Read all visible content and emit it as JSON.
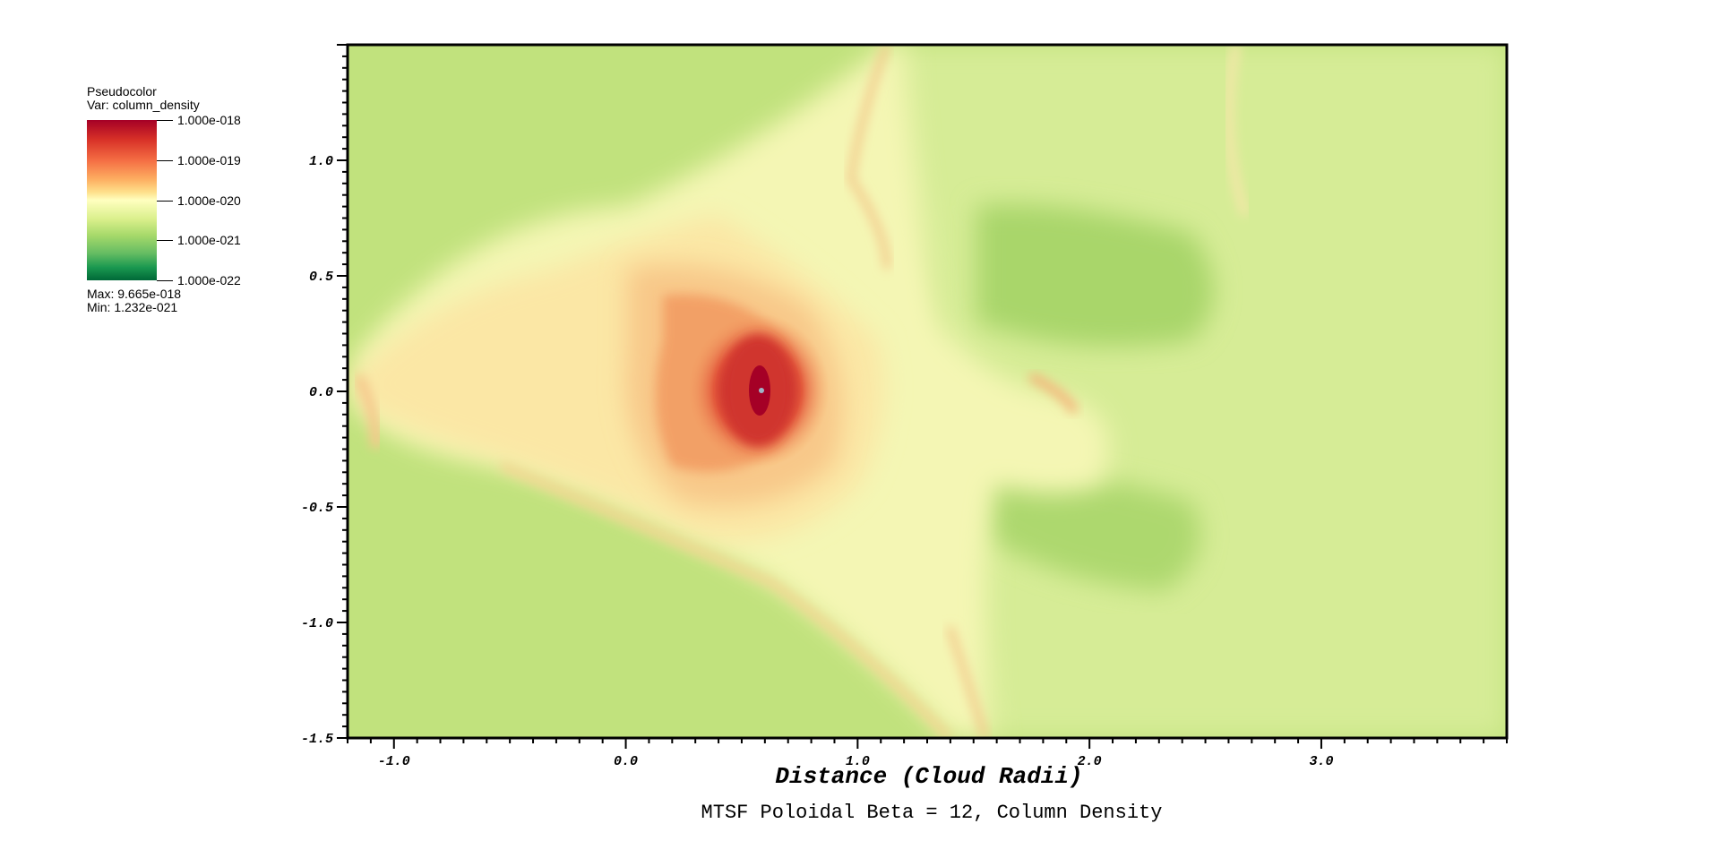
{
  "chart_data": {
    "type": "heatmap",
    "title": "MTSF Poloidal Beta = 12, Column Density",
    "xlabel": "Distance (Cloud Radii)",
    "ylabel": "",
    "xlim": [
      -1.2,
      3.8
    ],
    "ylim": [
      -1.5,
      1.5
    ],
    "x_ticks": [
      "-1.0",
      "0.0",
      "1.0",
      "2.0",
      "3.0"
    ],
    "x_tick_values": [
      -1.0,
      0.0,
      1.0,
      2.0,
      3.0
    ],
    "y_ticks": [
      "1.0",
      "0.5",
      "0.0",
      "-0.5",
      "-1.0",
      "-1.5"
    ],
    "y_tick_values": [
      1.0,
      0.5,
      0.0,
      -0.5,
      -1.0,
      -1.5
    ],
    "legend": {
      "plot_type": "Pseudocolor",
      "variable": "Var: column_density",
      "colorbar_labels": [
        "1.000e-018",
        "1.000e-019",
        "1.000e-020",
        "1.000e-021",
        "1.000e-022"
      ],
      "colorbar_values": [
        1e-18,
        1e-19,
        1e-20,
        1e-21,
        1e-22
      ],
      "max": "Max:  9.665e-018",
      "min": "Min:  1.232e-021",
      "scale": "log",
      "colormap": [
        "#a50026",
        "#f46d43",
        "#ffffbf",
        "#a6d96a",
        "#006837"
      ],
      "placement": "top-left"
    },
    "colors": {
      "background_field": "#c0e27c",
      "core": "#b2182b"
    }
  }
}
